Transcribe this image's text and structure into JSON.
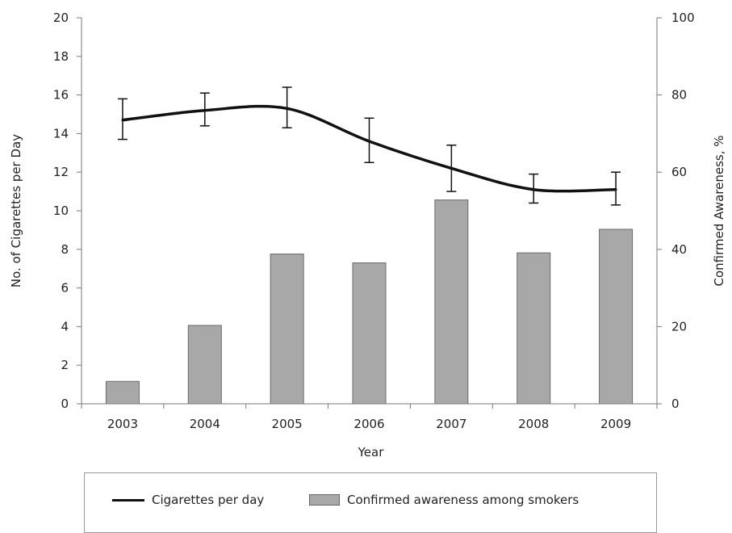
{
  "chart_data": {
    "type": "bar+line",
    "categories": [
      "2003",
      "2004",
      "2005",
      "2006",
      "2007",
      "2008",
      "2009"
    ],
    "xlabel": "Year",
    "y_left": {
      "label": "No. of Cigarettes per Day",
      "range": [
        0,
        20
      ],
      "ticks": [
        "0",
        "2",
        "4",
        "6",
        "8",
        "10",
        "12",
        "14",
        "16",
        "18",
        "20"
      ]
    },
    "y_right": {
      "label": "Confirmed Awareness, %",
      "range": [
        0,
        100
      ],
      "ticks": [
        "0",
        "20",
        "40",
        "60",
        "80",
        "100"
      ]
    },
    "series": [
      {
        "name": "Cigarettes per day",
        "type": "line",
        "axis": "left",
        "values": [
          14.7,
          15.2,
          15.3,
          13.6,
          12.2,
          11.1,
          11.1
        ],
        "error_low": [
          13.7,
          14.4,
          14.3,
          12.5,
          11.0,
          10.4,
          10.3
        ],
        "error_high": [
          15.8,
          16.1,
          16.4,
          14.8,
          13.4,
          11.9,
          12.0
        ],
        "color": "#111111"
      },
      {
        "name": "Confirmed awareness among smokers",
        "type": "bar",
        "axis": "right",
        "values": [
          5.8,
          20.3,
          38.8,
          36.5,
          52.8,
          39.1,
          45.2
        ],
        "color": "#a8a8a8"
      }
    ],
    "legend_position": "bottom",
    "grid": false
  },
  "legend": {
    "line_label": "Cigarettes per day",
    "bar_label": "Confirmed awareness among smokers"
  }
}
